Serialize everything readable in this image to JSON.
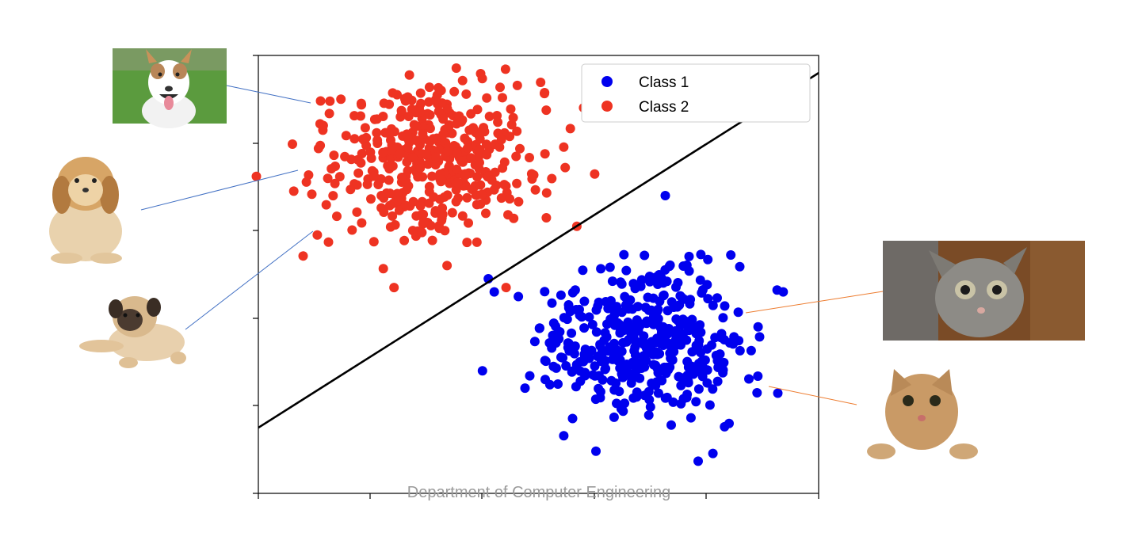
{
  "chart_data": {
    "type": "scatter",
    "title": "",
    "xlabel": "",
    "ylabel": "",
    "xlim": [
      -4.5,
      5
    ],
    "ylim": [
      -5,
      5
    ],
    "grid": false,
    "legend": {
      "position": "top-right",
      "entries": [
        "Class 1",
        "Class 2"
      ]
    },
    "decision_boundary": {
      "type": "line",
      "points": [
        [
          -4.5,
          -3.5
        ],
        [
          5,
          4.6
        ]
      ],
      "color": "#000000"
    },
    "series": [
      {
        "name": "Class 1",
        "color": "#0000ee",
        "center": [
          2.0,
          -1.55
        ],
        "spread": [
          0.86,
          0.86
        ],
        "count": 420,
        "seed": 17,
        "outliers": [
          [
            2.4,
            1.8
          ],
          [
            4.4,
            -0.4
          ],
          [
            -0.7,
            -2.2
          ],
          [
            -0.5,
            -0.4
          ],
          [
            -0.6,
            -0.1
          ]
        ]
      },
      {
        "name": "Class 2",
        "color": "#ee3322",
        "center": [
          -1.6,
          2.6
        ],
        "spread": [
          0.86,
          0.86
        ],
        "count": 420,
        "seed": 53,
        "outliers": [
          [
            -3.1,
            4.0
          ],
          [
            -3.4,
            3.4
          ],
          [
            -3.9,
            1.9
          ],
          [
            -3.5,
            0.9
          ],
          [
            -1.4,
            4.2
          ],
          [
            -1.3,
            0.2
          ],
          [
            -2.2,
            -0.3
          ],
          [
            0.9,
            1.1
          ],
          [
            -0.3,
            -0.3
          ]
        ]
      }
    ]
  },
  "annotations": {
    "dog_color": "#4472c4",
    "cat_color": "#ed7d31",
    "animals": [
      {
        "kind": "dog",
        "icon": "dog-photo-icon"
      },
      {
        "kind": "dog",
        "icon": "dog-photo-icon"
      },
      {
        "kind": "dog",
        "icon": "dog-photo-icon"
      },
      {
        "kind": "cat",
        "icon": "cat-photo-icon"
      },
      {
        "kind": "cat",
        "icon": "cat-photo-icon"
      }
    ]
  },
  "footer": {
    "text": "Department of Computer Engineering"
  }
}
